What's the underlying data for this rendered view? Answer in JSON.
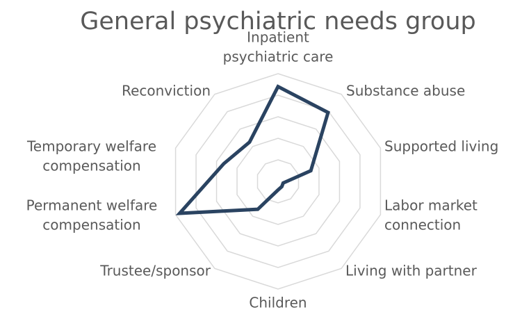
{
  "chart_data": {
    "type": "radar",
    "title": "General psychiatric needs group",
    "categories": [
      [
        "Inpatient",
        "psychiatric care"
      ],
      [
        "Substance abuse"
      ],
      [
        "Supported living"
      ],
      [
        "Labor market",
        "connection"
      ],
      [
        "Living with partner"
      ],
      [
        "Children"
      ],
      [
        "Trustee/sponsor"
      ],
      [
        "Permanent welfare",
        "compensation"
      ],
      [
        "Temporary welfare",
        "compensation"
      ],
      [
        "Reconviction"
      ]
    ],
    "values": [
      0.88,
      0.79,
      0.32,
      0.05,
      0.06,
      0.08,
      0.32,
      0.96,
      0.53,
      0.45
    ],
    "color": "#2a4361",
    "ylim": [
      0,
      1
    ],
    "yticks": [
      0.2,
      0.4,
      0.6,
      0.8,
      1
    ],
    "grid": true
  }
}
